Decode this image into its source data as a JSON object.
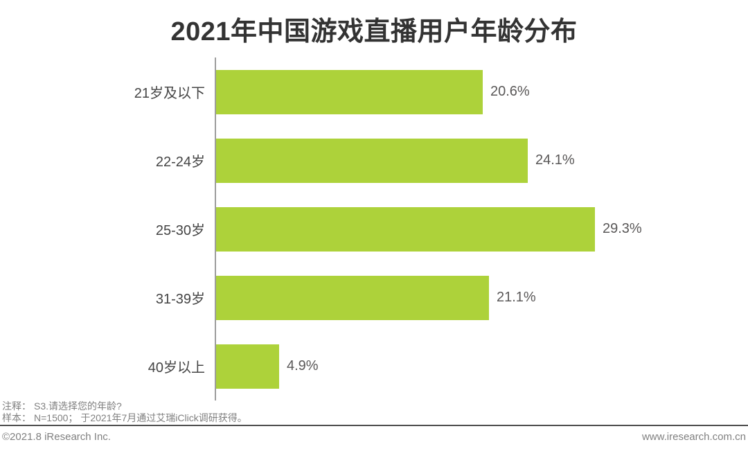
{
  "title": "2021年中国游戏直播用户年龄分布",
  "chart_data": {
    "type": "bar",
    "orientation": "horizontal",
    "title": "2021年中国游戏直播用户年龄分布",
    "categories": [
      "21岁及以下",
      "22-24岁",
      "25-30岁",
      "31-39岁",
      "40岁以上"
    ],
    "values": [
      20.6,
      24.1,
      29.3,
      21.1,
      4.9
    ],
    "value_labels": [
      "20.6%",
      "24.1%",
      "29.3%",
      "21.1%",
      "4.9%"
    ],
    "xlabel": "",
    "ylabel": "",
    "xlim": [
      0,
      30
    ],
    "grid": false,
    "legend": "none",
    "bar_color": "#ADD23A",
    "axis_color": "#9c9c9c"
  },
  "notes": {
    "note_label": "注释：",
    "note_text": "S3.请选择您的年龄?",
    "sample_label": "样本：",
    "sample_text": "N=1500； 于2021年7月通过艾瑞iClick调研获得。"
  },
  "footer": {
    "copyright": "©2021.8 iResearch Inc.",
    "website": "www.iresearch.com.cn"
  },
  "colors": {
    "bar": "#ADD23A",
    "title_text": "#333333",
    "label_text": "#444444",
    "value_text": "#595757",
    "note_text": "#7f7f7f",
    "divider": "#4d4d4d"
  }
}
